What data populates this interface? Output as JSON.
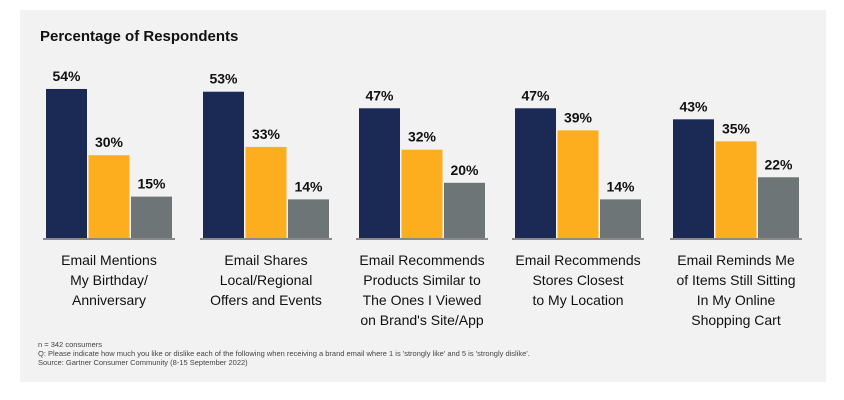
{
  "chart_data": {
    "type": "bar",
    "title": "Percentage of Respondents",
    "categories": [
      "Email Mentions My Birthday/ Anniversary",
      "Email Shares Local/Regional Offers and Events",
      "Email Recommends Products Similar to The Ones I Viewed on Brand's Site/App",
      "Email Recommends Stores Closest to My Location",
      "Email Reminds Me of Items Still Sitting In My Online Shopping Cart"
    ],
    "category_lines": [
      [
        "Email Mentions",
        "My Birthday/",
        "Anniversary"
      ],
      [
        "Email Shares",
        "Local/Regional",
        "Offers and Events"
      ],
      [
        "Email Recommends",
        "Products Similar to",
        "The Ones I Viewed",
        "on Brand's Site/App"
      ],
      [
        "Email Recommends",
        "Stores Closest",
        "to My Location"
      ],
      [
        "Email Reminds Me",
        "of Items Still Sitting",
        "In My Online",
        "Shopping Cart"
      ]
    ],
    "series": [
      {
        "name": "series-1",
        "color": "#1b2a55",
        "values": [
          54,
          53,
          47,
          47,
          43
        ]
      },
      {
        "name": "series-2",
        "color": "#fdae1e",
        "values": [
          30,
          33,
          32,
          39,
          35
        ]
      },
      {
        "name": "series-3",
        "color": "#6e7576",
        "values": [
          15,
          14,
          20,
          14,
          22
        ]
      }
    ],
    "ylim": [
      0,
      60
    ],
    "grid": false,
    "xlabel": "",
    "ylabel": "",
    "value_suffix": "%"
  },
  "notes": [
    "n = 342 consumers",
    "Q: Please indicate how much you like or dislike each of the following when receiving a brand email where 1 is 'strongly like' and 5 is 'strongly dislike'.",
    "Source: Gartner Consumer Community (8-15 September 2022)"
  ]
}
